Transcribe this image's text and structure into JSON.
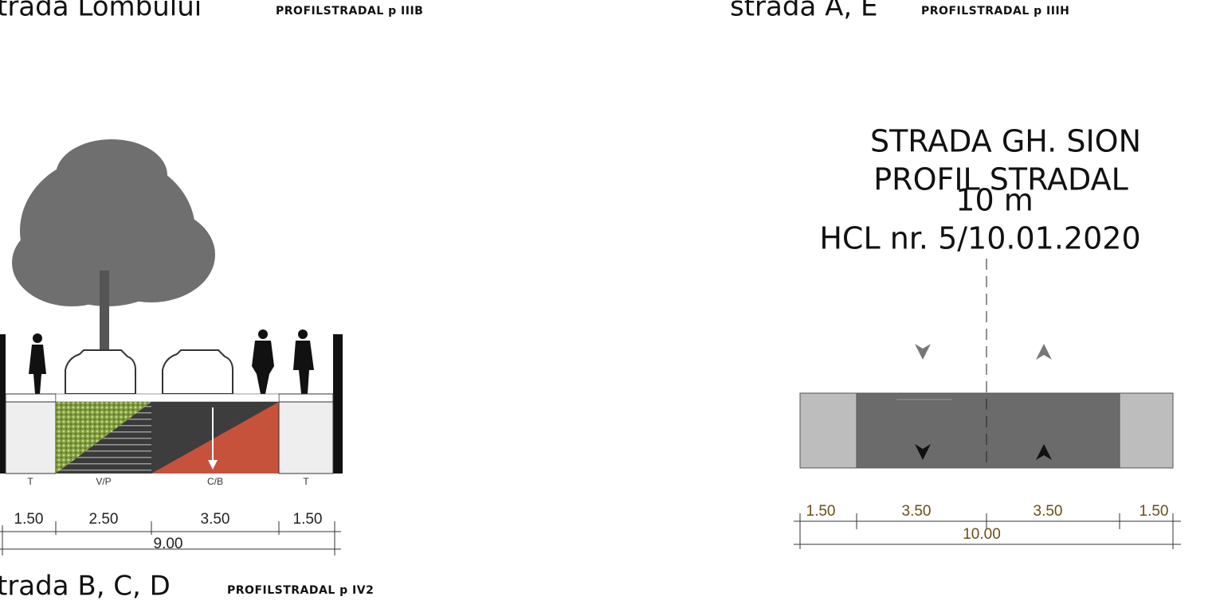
{
  "top_left": {
    "title": "trada Lombului",
    "code": "PROFILSTRADAL p IIIB"
  },
  "top_right": {
    "title": "strada A, E",
    "code": "PROFILSTRADAL p IIIH"
  },
  "bottom_left": {
    "title": "trada B, C, D",
    "code": "PROFILSTRADAL p IV2"
  },
  "left_profile": {
    "lanes": [
      "T",
      "V/P",
      "C/B",
      "T"
    ],
    "widths": [
      "1.50",
      "2.50",
      "3.50",
      "1.50"
    ],
    "total": "9.00"
  },
  "right_profile": {
    "heading": [
      "STRADA  GH. SION",
      "PROFIL STRADAL",
      "10 m",
      "HCL nr. 5/10.01.2020"
    ],
    "widths": [
      "1.50",
      "3.50",
      "3.50",
      "1.50"
    ],
    "total": "10.00"
  }
}
